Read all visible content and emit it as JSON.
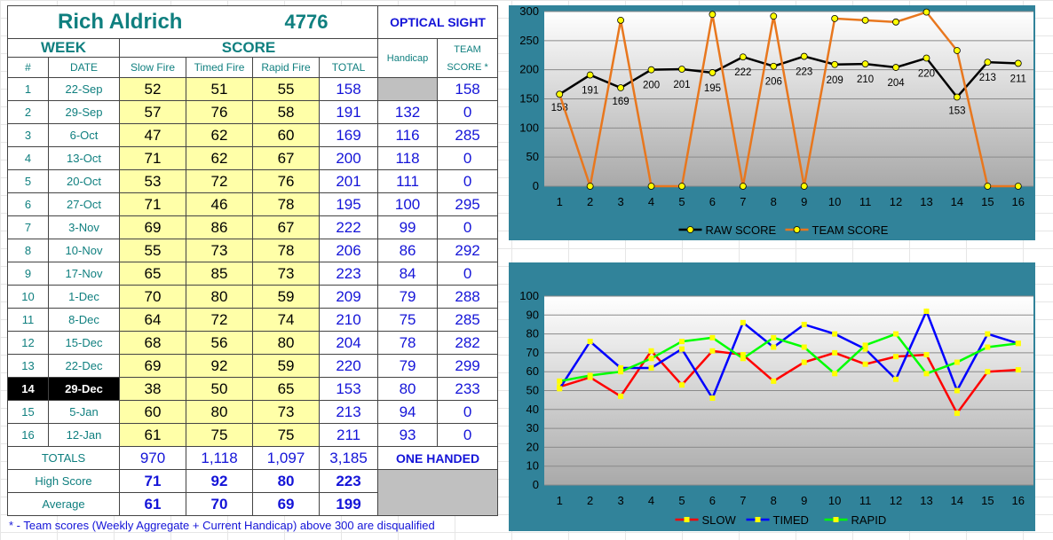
{
  "header": {
    "name": "Rich Aldrich",
    "id": "4776",
    "category": "OPTICAL SIGHT",
    "week_label": "WEEK",
    "score_label": "SCORE",
    "handicap_label": "Handicap",
    "team_score_label_1": "TEAM",
    "team_score_label_2": "SCORE *"
  },
  "columns": [
    "#",
    "DATE",
    "Slow Fire",
    "Timed Fire",
    "Rapid Fire",
    "TOTAL"
  ],
  "rows": [
    {
      "num": "1",
      "date": "22-Sep",
      "slow": "52",
      "timed": "51",
      "rapid": "55",
      "total": "158",
      "handicap": "",
      "team": "158"
    },
    {
      "num": "2",
      "date": "29-Sep",
      "slow": "57",
      "timed": "76",
      "rapid": "58",
      "total": "191",
      "handicap": "132",
      "team": "0"
    },
    {
      "num": "3",
      "date": "6-Oct",
      "slow": "47",
      "timed": "62",
      "rapid": "60",
      "total": "169",
      "handicap": "116",
      "team": "285"
    },
    {
      "num": "4",
      "date": "13-Oct",
      "slow": "71",
      "timed": "62",
      "rapid": "67",
      "total": "200",
      "handicap": "118",
      "team": "0"
    },
    {
      "num": "5",
      "date": "20-Oct",
      "slow": "53",
      "timed": "72",
      "rapid": "76",
      "total": "201",
      "handicap": "111",
      "team": "0"
    },
    {
      "num": "6",
      "date": "27-Oct",
      "slow": "71",
      "timed": "46",
      "rapid": "78",
      "total": "195",
      "handicap": "100",
      "team": "295"
    },
    {
      "num": "7",
      "date": "3-Nov",
      "slow": "69",
      "timed": "86",
      "rapid": "67",
      "total": "222",
      "handicap": "99",
      "team": "0"
    },
    {
      "num": "8",
      "date": "10-Nov",
      "slow": "55",
      "timed": "73",
      "rapid": "78",
      "total": "206",
      "handicap": "86",
      "team": "292"
    },
    {
      "num": "9",
      "date": "17-Nov",
      "slow": "65",
      "timed": "85",
      "rapid": "73",
      "total": "223",
      "handicap": "84",
      "team": "0"
    },
    {
      "num": "10",
      "date": "1-Dec",
      "slow": "70",
      "timed": "80",
      "rapid": "59",
      "total": "209",
      "handicap": "79",
      "team": "288"
    },
    {
      "num": "11",
      "date": "8-Dec",
      "slow": "64",
      "timed": "72",
      "rapid": "74",
      "total": "210",
      "handicap": "75",
      "team": "285"
    },
    {
      "num": "12",
      "date": "15-Dec",
      "slow": "68",
      "timed": "56",
      "rapid": "80",
      "total": "204",
      "handicap": "78",
      "team": "282"
    },
    {
      "num": "13",
      "date": "22-Dec",
      "slow": "69",
      "timed": "92",
      "rapid": "59",
      "total": "220",
      "handicap": "79",
      "team": "299"
    },
    {
      "num": "14",
      "date": "29-Dec",
      "slow": "38",
      "timed": "50",
      "rapid": "65",
      "total": "153",
      "handicap": "80",
      "team": "233"
    },
    {
      "num": "15",
      "date": "5-Jan",
      "slow": "60",
      "timed": "80",
      "rapid": "73",
      "total": "213",
      "handicap": "94",
      "team": "0"
    },
    {
      "num": "16",
      "date": "12-Jan",
      "slow": "61",
      "timed": "75",
      "rapid": "75",
      "total": "211",
      "handicap": "93",
      "team": "0"
    }
  ],
  "highlight_row_index": 13,
  "totals": {
    "label": "TOTALS",
    "slow": "970",
    "timed": "1,118",
    "rapid": "1,097",
    "total": "3,185",
    "note": "ONE HANDED"
  },
  "high": {
    "label": "High Score",
    "slow": "71",
    "timed": "92",
    "rapid": "80",
    "total": "223"
  },
  "average": {
    "label": "Average",
    "slow": "61",
    "timed": "70",
    "rapid": "69",
    "total": "199"
  },
  "footnote": "* - Team scores (Weekly Aggregate + Current Handicap) above 300 are disqualified",
  "colors": {
    "chart_bg": "#31839a",
    "raw": "#000000",
    "team": "#e8771e",
    "slow": "#ff0000",
    "timed": "#0000ff",
    "rapid": "#00ff00",
    "marker": "#ffff00"
  },
  "chart_data": [
    {
      "type": "line",
      "categories": [
        "1",
        "2",
        "3",
        "4",
        "5",
        "6",
        "7",
        "8",
        "9",
        "10",
        "11",
        "12",
        "13",
        "14",
        "15",
        "16"
      ],
      "ylim": [
        0,
        300
      ],
      "yticks": [
        "0",
        "50",
        "100",
        "150",
        "200",
        "250",
        "300"
      ],
      "series": [
        {
          "name": "RAW SCORE",
          "color": "#000000",
          "values": [
            158,
            191,
            169,
            200,
            201,
            195,
            222,
            206,
            223,
            209,
            210,
            204,
            220,
            153,
            213,
            211
          ],
          "labels": [
            "158",
            "191",
            "169",
            "200",
            "201",
            "195",
            "222",
            "206",
            "223",
            "209",
            "210",
            "204",
            "220",
            "153",
            "213",
            "211"
          ]
        },
        {
          "name": "TEAM SCORE",
          "color": "#e8771e",
          "values": [
            158,
            0,
            285,
            0,
            0,
            295,
            0,
            292,
            0,
            288,
            285,
            282,
            299,
            233,
            0,
            0
          ]
        }
      ],
      "legend_position": "bottom"
    },
    {
      "type": "line",
      "categories": [
        "1",
        "2",
        "3",
        "4",
        "5",
        "6",
        "7",
        "8",
        "9",
        "10",
        "11",
        "12",
        "13",
        "14",
        "15",
        "16"
      ],
      "ylim": [
        0,
        100
      ],
      "yticks": [
        "0",
        "10",
        "20",
        "30",
        "40",
        "50",
        "60",
        "70",
        "80",
        "90",
        "100"
      ],
      "series": [
        {
          "name": "SLOW",
          "color": "#ff0000",
          "values": [
            52,
            57,
            47,
            71,
            53,
            71,
            69,
            55,
            65,
            70,
            64,
            68,
            69,
            38,
            60,
            61
          ]
        },
        {
          "name": "TIMED",
          "color": "#0000ff",
          "values": [
            51,
            76,
            62,
            62,
            72,
            46,
            86,
            73,
            85,
            80,
            72,
            56,
            92,
            50,
            80,
            75
          ]
        },
        {
          "name": "RAPID",
          "color": "#00ff00",
          "values": [
            55,
            58,
            60,
            67,
            76,
            78,
            67,
            78,
            73,
            59,
            74,
            80,
            59,
            65,
            73,
            75
          ]
        }
      ],
      "legend_position": "bottom"
    }
  ]
}
